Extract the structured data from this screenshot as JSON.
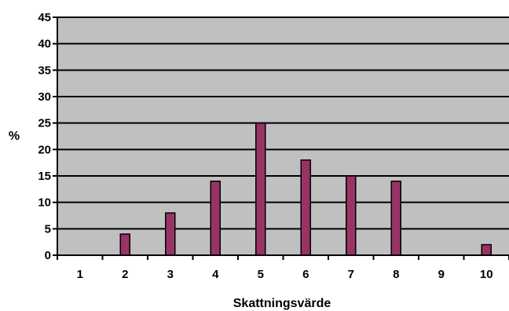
{
  "chart_data": {
    "type": "bar",
    "categories": [
      "1",
      "2",
      "3",
      "4",
      "5",
      "6",
      "7",
      "8",
      "9",
      "10"
    ],
    "values": [
      0,
      4,
      8,
      14,
      25,
      18,
      15,
      14,
      0,
      2
    ],
    "xlabel": "Skattningsvärde",
    "ylabel": "%",
    "ylim": [
      0,
      45
    ],
    "yticks": [
      "0",
      "5",
      "10",
      "15",
      "20",
      "25",
      "30",
      "35",
      "40",
      "45"
    ],
    "grid": true,
    "legend": "none",
    "colors": {
      "bar_fill": "#993366",
      "bar_stroke": "#000000",
      "plot_background": "#c0c0c0",
      "gridline": "#000000"
    }
  }
}
